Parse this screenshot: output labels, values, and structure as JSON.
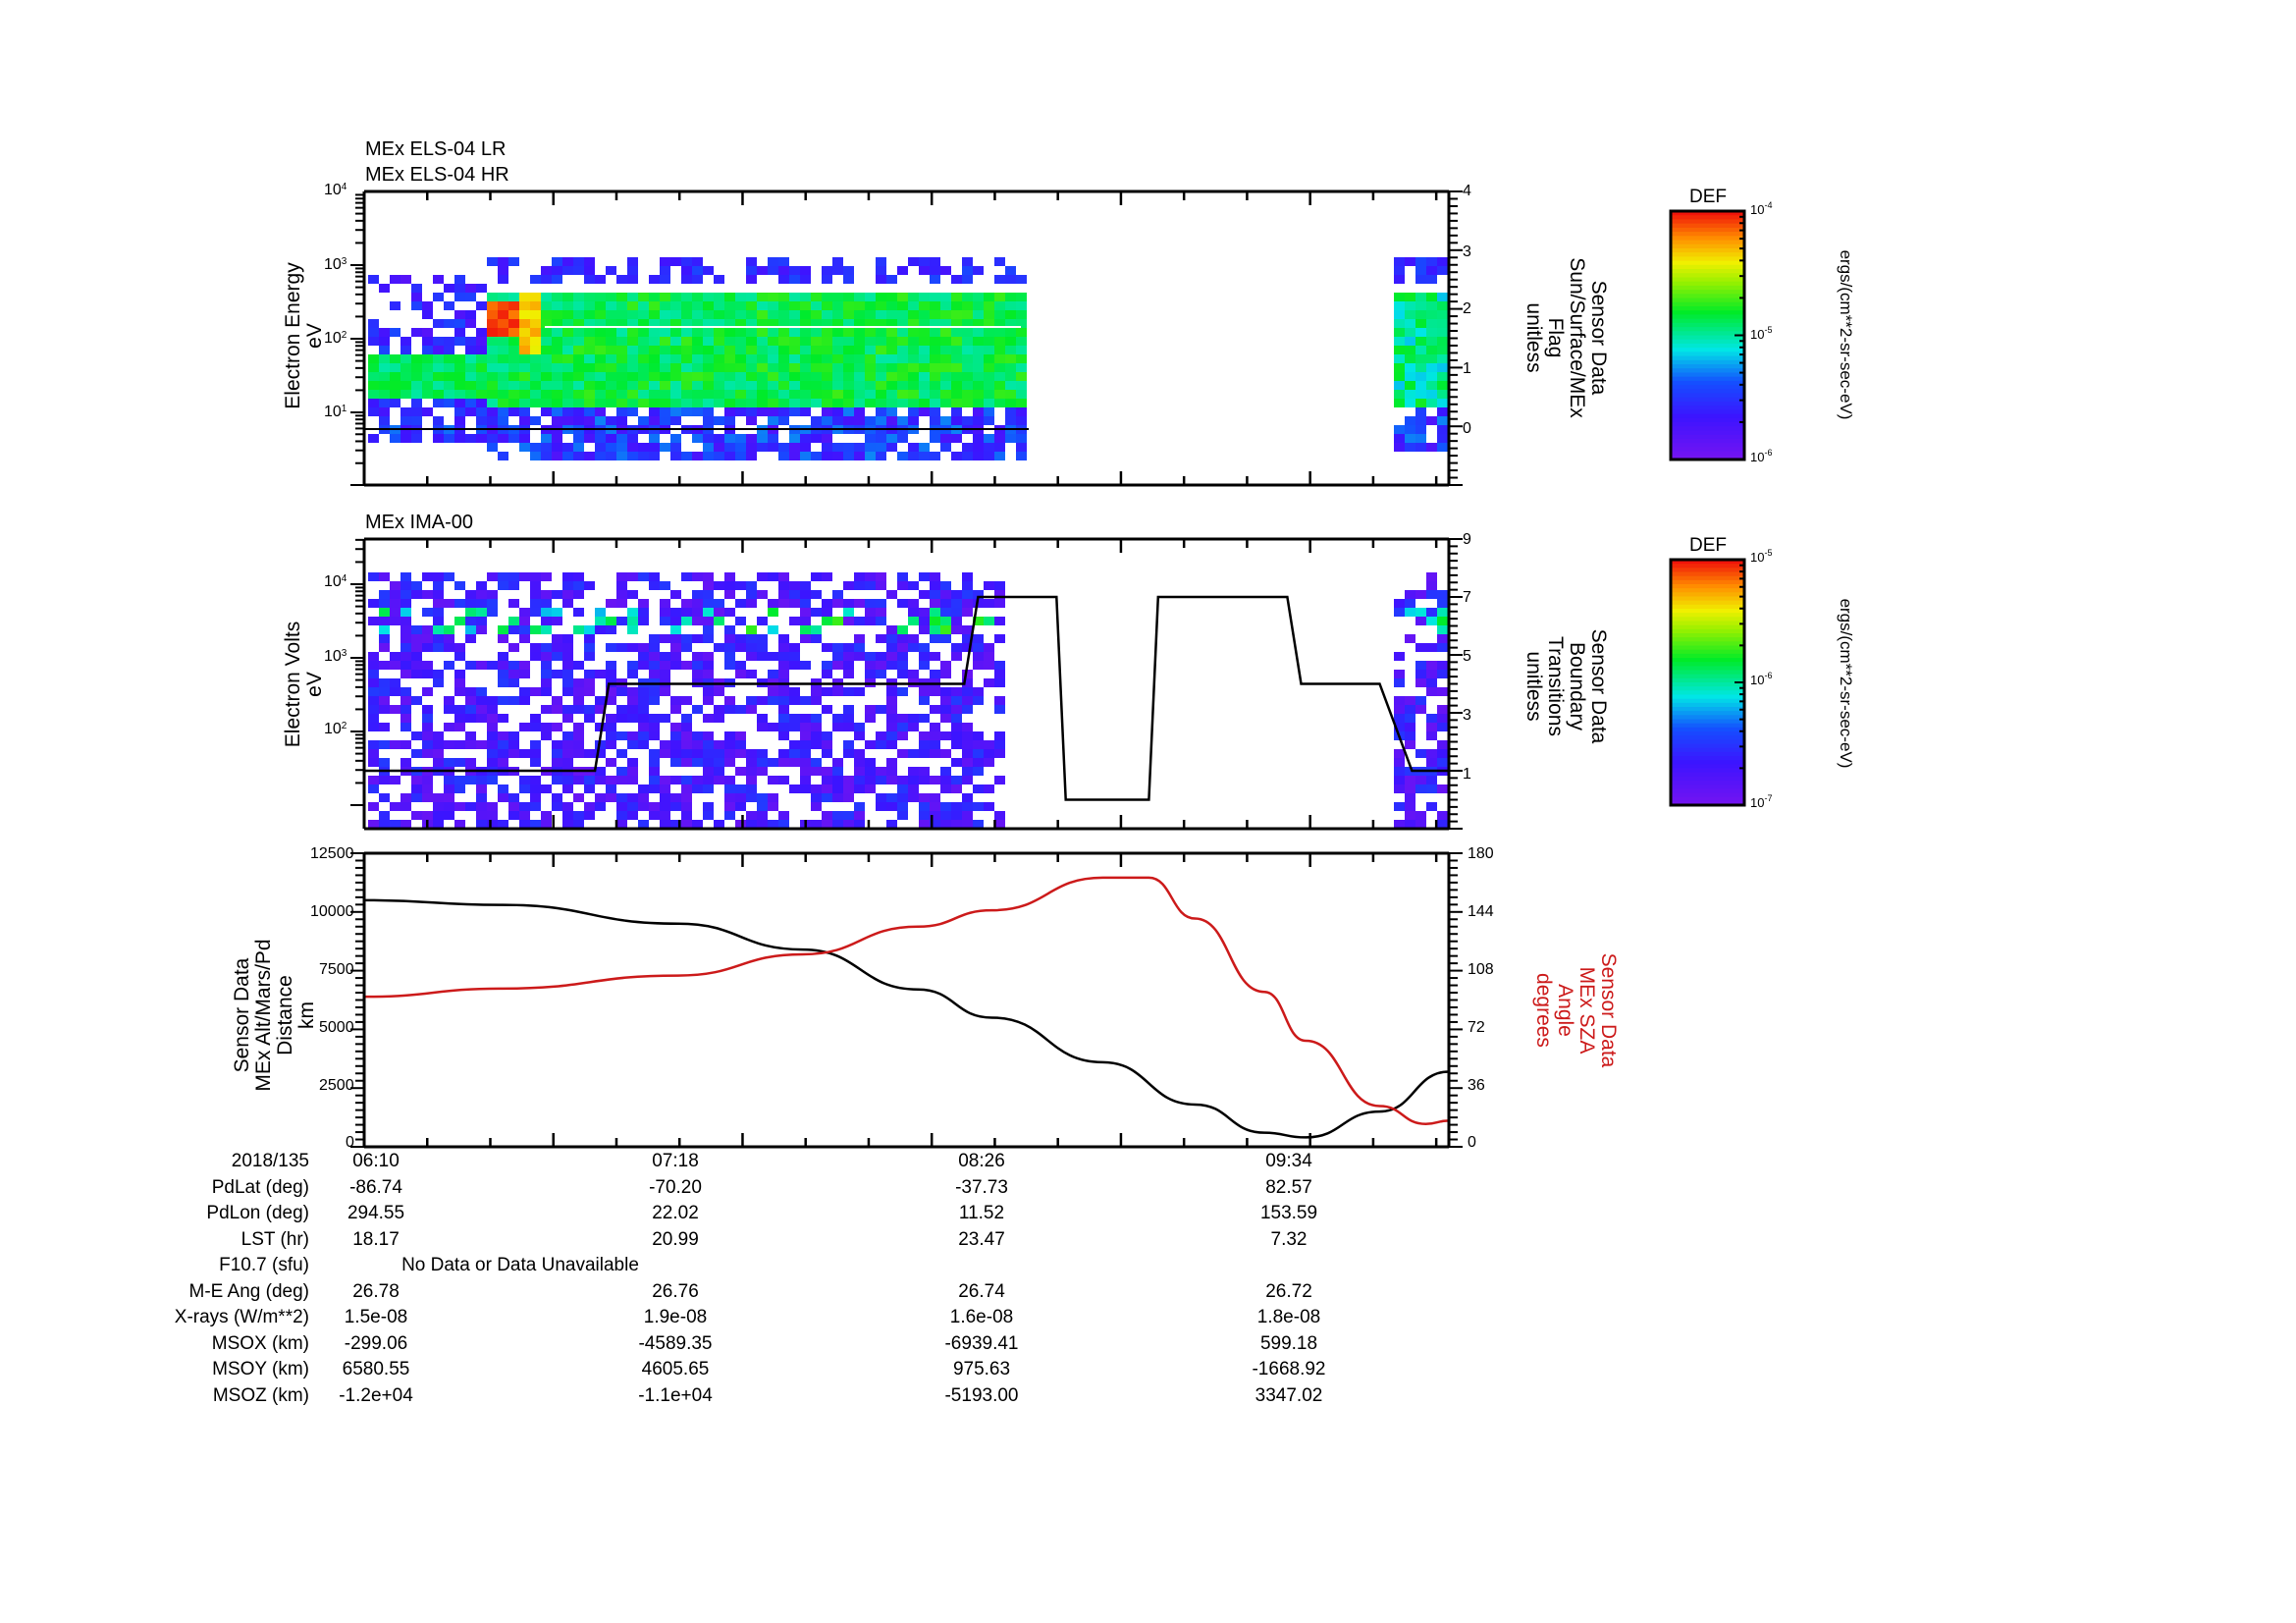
{
  "panel1": {
    "titles": [
      "MEx ELS-04 LR",
      "MEx ELS-04 HR"
    ],
    "ylabel_left": [
      "Electron Energy",
      "eV"
    ],
    "ylabel_right": [
      "Sensor Data",
      "Sun/Surface/MEx",
      "Flag",
      "unitless"
    ],
    "yticks_left": [
      {
        "base": "10",
        "exp": "4"
      },
      {
        "base": "10",
        "exp": "3"
      },
      {
        "base": "10",
        "exp": "2"
      },
      {
        "base": "10",
        "exp": "1"
      }
    ],
    "yticks_right": [
      "4",
      "3",
      "2",
      "1",
      "0"
    ],
    "colorbar": {
      "title": "DEF",
      "ticks": [
        {
          "base": "10",
          "exp": "-4"
        },
        {
          "base": "10",
          "exp": "-5"
        },
        {
          "base": "10",
          "exp": "-6"
        }
      ],
      "units": "ergs/(cm**2-sr-sec-eV)"
    }
  },
  "panel2": {
    "title": "MEx IMA-00",
    "ylabel_left": [
      "Electron Volts",
      "eV"
    ],
    "ylabel_right": [
      "Sensor Data",
      "Boundary",
      "Transitions",
      "unitless"
    ],
    "yticks_left": [
      {
        "base": "10",
        "exp": "4"
      },
      {
        "base": "10",
        "exp": "3"
      },
      {
        "base": "10",
        "exp": "2"
      }
    ],
    "yticks_right": [
      "9",
      "7",
      "5",
      "3",
      "1"
    ],
    "colorbar": {
      "title": "DEF",
      "ticks": [
        {
          "base": "10",
          "exp": "-5"
        },
        {
          "base": "10",
          "exp": "-6"
        },
        {
          "base": "10",
          "exp": "-7"
        }
      ],
      "units": "ergs/(cm**2-sr-sec-eV)"
    }
  },
  "panel3": {
    "ylabel_left": [
      "Sensor Data",
      "MEx Alt/Mars/Pd",
      "Distance",
      "km"
    ],
    "ylabel_right": [
      "Sensor Data",
      "MEx SZA",
      "Angle",
      "degrees"
    ],
    "yticks_left": [
      "12500",
      "10000",
      "7500",
      "5000",
      "2500",
      "0"
    ],
    "yticks_right": [
      "180",
      "144",
      "108",
      "72",
      "36",
      "0"
    ],
    "left_color": "#000000",
    "right_color": "#cc1a1a"
  },
  "table": {
    "rows": [
      {
        "label": "2018/135",
        "values": [
          "06:10",
          "07:18",
          "08:26",
          "09:34"
        ]
      },
      {
        "label": "PdLat (deg)",
        "values": [
          "-86.74",
          "-70.20",
          "-37.73",
          "82.57"
        ]
      },
      {
        "label": "PdLon (deg)",
        "values": [
          "294.55",
          "22.02",
          "11.52",
          "153.59"
        ]
      },
      {
        "label": "LST (hr)",
        "values": [
          "18.17",
          "20.99",
          "23.47",
          "7.32"
        ]
      },
      {
        "label": "F10.7 (sfu)",
        "values": [
          "No Data or Data Unavailable"
        ]
      },
      {
        "label": "M-E Ang (deg)",
        "values": [
          "26.78",
          "26.76",
          "26.74",
          "26.72"
        ]
      },
      {
        "label": "X-rays (W/m**2)",
        "values": [
          "1.5e-08",
          "1.9e-08",
          "1.6e-08",
          "1.8e-08"
        ]
      },
      {
        "label": "MSOX (km)",
        "values": [
          "-299.06",
          "-4589.35",
          "-6939.41",
          "599.18"
        ]
      },
      {
        "label": "MSOY (km)",
        "values": [
          "6580.55",
          "4605.65",
          "975.63",
          "-1668.92"
        ]
      },
      {
        "label": "MSOZ (km)",
        "values": [
          "-1.2e+04",
          "-1.1e+04",
          "-5193.00",
          "3347.02"
        ]
      }
    ]
  },
  "chart_data": [
    {
      "type": "heatmap",
      "title": "MEx ELS-04 LR / MEx ELS-04 HR",
      "xlabel": "Time (2018/135)",
      "ylabel": "Electron Energy (eV)",
      "yscale": "log",
      "ylim": [
        1,
        10000
      ],
      "x_ticks": [
        "06:10",
        "07:18",
        "08:26",
        "09:34"
      ],
      "colorbar": {
        "label": "DEF ergs/(cm**2-sr-sec-eV)",
        "range": [
          1e-06,
          0.0001
        ],
        "scale": "log"
      },
      "data_gaps": [
        [
          "~08:30",
          "~09:55"
        ]
      ],
      "notes": "Peak DEF (~1e-4, red) near 06:50 at ~50 eV; broad green band 5-100 eV",
      "overlay": {
        "name": "Sun/Surface/MEx Flag",
        "axis": "right",
        "ylim": [
          -1,
          4
        ],
        "x": [
          "06:10",
          "08:30"
        ],
        "values": [
          0,
          0
        ]
      }
    },
    {
      "type": "heatmap",
      "title": "MEx IMA-00",
      "xlabel": "Time (2018/135)",
      "ylabel": "Electron Volts (eV)",
      "yscale": "log",
      "ylim": [
        10,
        40000
      ],
      "x_ticks": [
        "06:10",
        "07:18",
        "08:26",
        "09:34"
      ],
      "colorbar": {
        "label": "DEF ergs/(cm**2-sr-sec-eV)",
        "range": [
          1e-07,
          1e-05
        ],
        "scale": "log"
      },
      "data_gaps": [
        [
          "~08:20",
          "~09:55"
        ]
      ],
      "overlay": {
        "name": "Boundary Transitions",
        "axis": "right",
        "ylim": [
          -1,
          9
        ],
        "x": [
          "06:10",
          "07:00",
          "07:03",
          "08:20",
          "08:23",
          "08:40",
          "08:42",
          "09:00",
          "09:02",
          "09:30",
          "09:33",
          "09:50",
          "09:57",
          "10:05"
        ],
        "values": [
          1,
          1,
          4,
          4,
          7,
          7,
          0,
          0,
          7,
          7,
          4,
          4,
          1,
          1
        ]
      }
    },
    {
      "type": "line",
      "xlabel": "Time (2018/135)",
      "x_ticks": [
        "06:10",
        "07:18",
        "08:26",
        "09:34"
      ],
      "series": [
        {
          "name": "MEx Alt/Mars/Pd Distance (km)",
          "axis": "left",
          "color": "#000000",
          "x": [
            "06:10",
            "06:40",
            "07:18",
            "07:45",
            "08:10",
            "08:26",
            "08:50",
            "09:10",
            "09:25",
            "09:34",
            "09:50",
            "10:05"
          ],
          "values": [
            10500,
            10300,
            9500,
            8400,
            6700,
            5500,
            3600,
            1800,
            600,
            400,
            1500,
            3200
          ]
        },
        {
          "name": "MEx SZA Angle (degrees)",
          "axis": "right",
          "color": "#cc1a1a",
          "x": [
            "06:10",
            "06:40",
            "07:18",
            "07:45",
            "08:10",
            "08:26",
            "08:50",
            "09:00",
            "09:10",
            "09:25",
            "09:34",
            "09:50",
            "10:00",
            "10:05"
          ],
          "values": [
            92,
            97,
            105,
            118,
            135,
            145,
            165,
            165,
            140,
            95,
            65,
            25,
            14,
            16
          ]
        }
      ],
      "ylim_left": [
        0,
        12500
      ],
      "ylim_right": [
        0,
        180
      ],
      "ylabel_left": "Sensor Data MEx Alt/Mars/Pd Distance km",
      "ylabel_right": "Sensor Data MEx SZA Angle degrees"
    }
  ]
}
